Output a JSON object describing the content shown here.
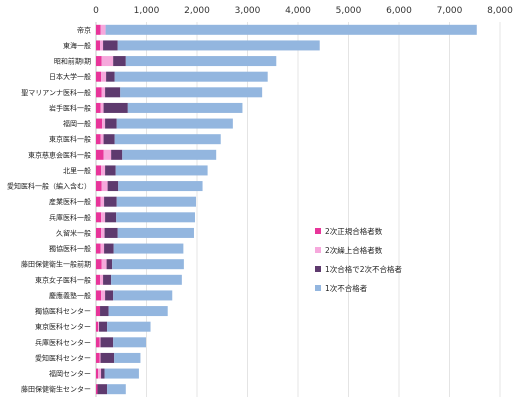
{
  "chart_data": {
    "type": "bar",
    "orientation": "horizontal",
    "stacked": true,
    "xlim": [
      0,
      8000
    ],
    "xticks": [
      "0",
      "1,000",
      "2,000",
      "3,000",
      "4,000",
      "5,000",
      "6,000",
      "7,000",
      "8,000"
    ],
    "xtick_values": [
      0,
      1000,
      2000,
      3000,
      4000,
      5000,
      6000,
      7000,
      8000
    ],
    "grid": true,
    "legend_position": "right",
    "categories": [
      "帝京",
      "東海一般",
      "昭和前期Ⅰ期",
      "日本大学一般",
      "聖マリアンナ医科一般",
      "岩手医科一般",
      "福岡一般",
      "東京医科一般",
      "東京慈恵会医科一般",
      "北里一般",
      "愛知医科一般（編入含む）",
      "産業医科一般",
      "兵庫医科一般",
      "久留米一般",
      "獨協医科一般",
      "藤田保健衛生一般前期",
      "東京女子医科一般",
      "慶應義塾一般",
      "獨協医科センター",
      "東京医科センター",
      "兵庫医科センター",
      "愛知医科センター",
      "福岡センター",
      "藤田保健衛生センター"
    ],
    "series": [
      {
        "name": "2次正規合格者数",
        "color": "#e8359a",
        "values": [
          90,
          80,
          110,
          100,
          110,
          90,
          120,
          90,
          150,
          100,
          110,
          90,
          100,
          100,
          90,
          110,
          80,
          100,
          80,
          40,
          70,
          70,
          40,
          30
        ]
      },
      {
        "name": "2次繰上合格者数",
        "color": "#f6a8dc",
        "values": [
          100,
          60,
          230,
          100,
          70,
          60,
          60,
          60,
          150,
          80,
          120,
          70,
          80,
          70,
          70,
          100,
          60,
          80,
          0,
          20,
          20,
          20,
          60,
          0
        ]
      },
      {
        "name": "1次合格で2次不合格者",
        "color": "#5e3a6e",
        "values": [
          0,
          290,
          250,
          170,
          300,
          480,
          230,
          220,
          220,
          210,
          210,
          250,
          220,
          260,
          190,
          110,
          160,
          160,
          170,
          160,
          250,
          270,
          70,
          190
        ]
      },
      {
        "name": "1次不合格者",
        "color": "#93b6df",
        "values": [
          7350,
          4000,
          2980,
          3030,
          2810,
          2270,
          2300,
          2100,
          1860,
          1820,
          1670,
          1570,
          1560,
          1510,
          1380,
          1420,
          1400,
          1170,
          1170,
          860,
          650,
          520,
          680,
          370
        ]
      }
    ]
  }
}
